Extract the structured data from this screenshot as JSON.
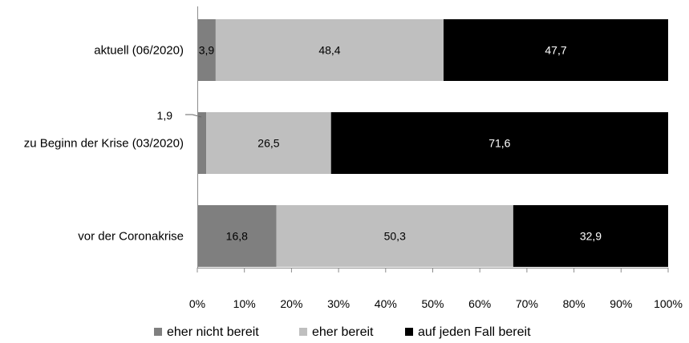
{
  "chart_data": {
    "type": "bar",
    "orientation": "horizontal",
    "stacked": true,
    "categories": [
      "aktuell (06/2020)",
      "zu Beginn der Krise (03/2020)",
      "vor der Coronakrise"
    ],
    "series": [
      {
        "name": "eher nicht bereit",
        "color": "#7f7f7f",
        "values": [
          3.9,
          1.9,
          16.8
        ],
        "labels": [
          "3,9",
          "1,9",
          "16,8"
        ],
        "label_color": "#000000"
      },
      {
        "name": "eher bereit",
        "color": "#bfbfbf",
        "values": [
          48.4,
          26.5,
          50.3
        ],
        "labels": [
          "48,4",
          "26,5",
          "50,3"
        ],
        "label_color": "#000000"
      },
      {
        "name": "auf jeden Fall bereit",
        "color": "#000000",
        "values": [
          47.7,
          71.6,
          32.9
        ],
        "labels": [
          "47,7",
          "71,6",
          "32,9"
        ],
        "label_color": "#ffffff"
      }
    ],
    "xlim": [
      0,
      100
    ],
    "xticks": [
      "0%",
      "10%",
      "20%",
      "30%",
      "40%",
      "50%",
      "60%",
      "70%",
      "80%",
      "90%",
      "100%"
    ],
    "grid": false,
    "legend_position": "bottom",
    "callout": {
      "category_index": 1,
      "series_index": 0,
      "text": "1,9"
    }
  }
}
